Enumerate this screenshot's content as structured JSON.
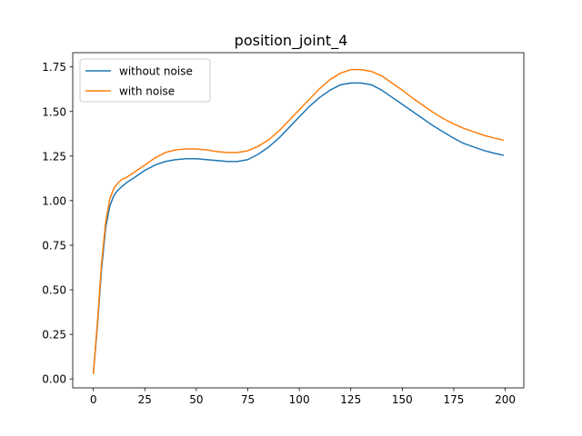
{
  "chart_data": {
    "type": "line",
    "title": "position_joint_4",
    "xlabel": "",
    "ylabel": "",
    "xlim": [
      -10,
      209
    ],
    "ylim": [
      -0.05,
      1.83
    ],
    "xticks": [
      0,
      25,
      50,
      75,
      100,
      125,
      150,
      175,
      200
    ],
    "yticks": [
      0.0,
      0.25,
      0.5,
      0.75,
      1.0,
      1.25,
      1.5,
      1.75
    ],
    "xtick_labels": [
      "0",
      "25",
      "50",
      "75",
      "100",
      "125",
      "150",
      "175",
      "200"
    ],
    "ytick_labels": [
      "0.00",
      "0.25",
      "0.50",
      "0.75",
      "1.00",
      "1.25",
      "1.50",
      "1.75"
    ],
    "grid": false,
    "legend_position": "top-left",
    "series": [
      {
        "name": "without noise",
        "color": "#1f77b4",
        "x": [
          0,
          2,
          4,
          6,
          8,
          10,
          12,
          14,
          16,
          20,
          25,
          30,
          35,
          40,
          45,
          50,
          55,
          60,
          65,
          70,
          75,
          80,
          85,
          90,
          95,
          100,
          105,
          110,
          115,
          120,
          125,
          130,
          135,
          140,
          145,
          150,
          155,
          160,
          165,
          170,
          175,
          180,
          185,
          190,
          195,
          199
        ],
        "y": [
          0.03,
          0.3,
          0.62,
          0.85,
          0.97,
          1.03,
          1.06,
          1.08,
          1.1,
          1.13,
          1.17,
          1.2,
          1.22,
          1.23,
          1.235,
          1.235,
          1.23,
          1.225,
          1.22,
          1.22,
          1.23,
          1.26,
          1.3,
          1.35,
          1.41,
          1.47,
          1.53,
          1.58,
          1.62,
          1.65,
          1.66,
          1.66,
          1.65,
          1.62,
          1.58,
          1.54,
          1.5,
          1.46,
          1.42,
          1.385,
          1.35,
          1.32,
          1.3,
          1.28,
          1.265,
          1.255
        ]
      },
      {
        "name": "with noise",
        "color": "#ff7f0e",
        "x": [
          0,
          2,
          4,
          6,
          8,
          10,
          12,
          14,
          16,
          20,
          25,
          30,
          35,
          40,
          45,
          50,
          55,
          60,
          65,
          70,
          75,
          80,
          85,
          90,
          95,
          100,
          105,
          110,
          115,
          120,
          125,
          130,
          135,
          140,
          145,
          150,
          155,
          160,
          165,
          170,
          175,
          180,
          185,
          190,
          195,
          199
        ],
        "y": [
          0.03,
          0.32,
          0.65,
          0.88,
          1.01,
          1.07,
          1.1,
          1.12,
          1.13,
          1.16,
          1.2,
          1.24,
          1.27,
          1.285,
          1.29,
          1.29,
          1.285,
          1.275,
          1.27,
          1.27,
          1.28,
          1.305,
          1.34,
          1.39,
          1.45,
          1.51,
          1.57,
          1.63,
          1.68,
          1.715,
          1.735,
          1.735,
          1.725,
          1.7,
          1.66,
          1.62,
          1.575,
          1.535,
          1.495,
          1.46,
          1.43,
          1.405,
          1.385,
          1.365,
          1.35,
          1.34
        ]
      }
    ]
  }
}
